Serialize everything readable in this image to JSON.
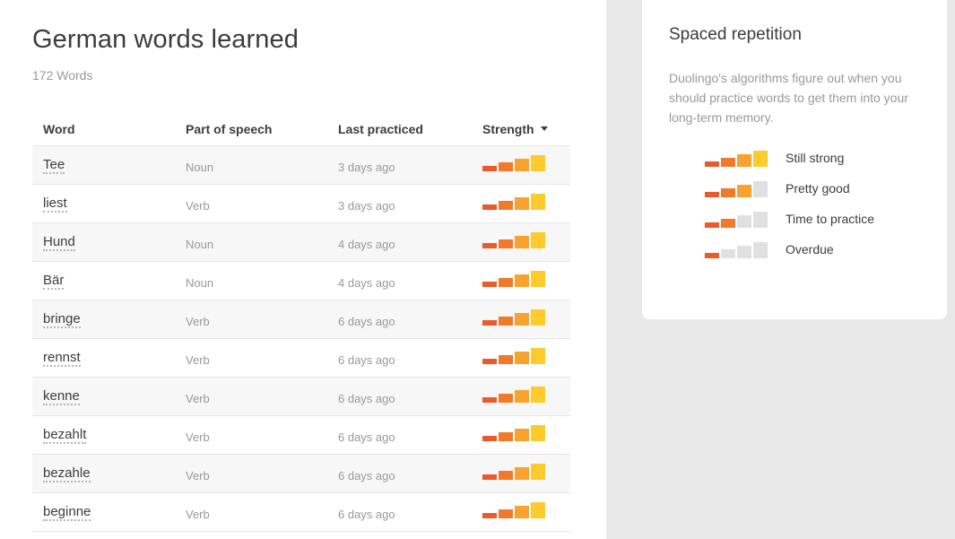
{
  "header": {
    "title": "German words learned",
    "count": "172 Words"
  },
  "table": {
    "columns": {
      "word": "Word",
      "part_of_speech": "Part of speech",
      "last_practiced": "Last practiced",
      "strength": "Strength"
    },
    "rows": [
      {
        "word": "Tee",
        "pos": "Noun",
        "last": "3 days ago",
        "strength": 4
      },
      {
        "word": "liest",
        "pos": "Verb",
        "last": "3 days ago",
        "strength": 4
      },
      {
        "word": "Hund",
        "pos": "Noun",
        "last": "4 days ago",
        "strength": 4
      },
      {
        "word": "Bär",
        "pos": "Noun",
        "last": "4 days ago",
        "strength": 4
      },
      {
        "word": "bringe",
        "pos": "Verb",
        "last": "6 days ago",
        "strength": 4
      },
      {
        "word": "rennst",
        "pos": "Verb",
        "last": "6 days ago",
        "strength": 4
      },
      {
        "word": "kenne",
        "pos": "Verb",
        "last": "6 days ago",
        "strength": 4
      },
      {
        "word": "bezahlt",
        "pos": "Verb",
        "last": "6 days ago",
        "strength": 4
      },
      {
        "word": "bezahle",
        "pos": "Verb",
        "last": "6 days ago",
        "strength": 4
      },
      {
        "word": "beginne",
        "pos": "Verb",
        "last": "6 days ago",
        "strength": 4
      }
    ]
  },
  "sidebar": {
    "title": "Spaced repetition",
    "description": "Duolingo's algorithms figure out when you should practice words to get them into your long-term memory.",
    "legend": [
      {
        "label": "Still strong",
        "strength": 4
      },
      {
        "label": "Pretty good",
        "strength": 3
      },
      {
        "label": "Time to practice",
        "strength": 2
      },
      {
        "label": "Overdue",
        "strength": 1
      }
    ]
  },
  "colors": {
    "bar_1": "#ea5b2c",
    "bar_2": "#f07a2a",
    "bar_3": "#f8a230",
    "bar_4": "#fecb2e",
    "bar_empty": "#e0e0e0",
    "sidebar_bg": "#e9e9e9"
  }
}
